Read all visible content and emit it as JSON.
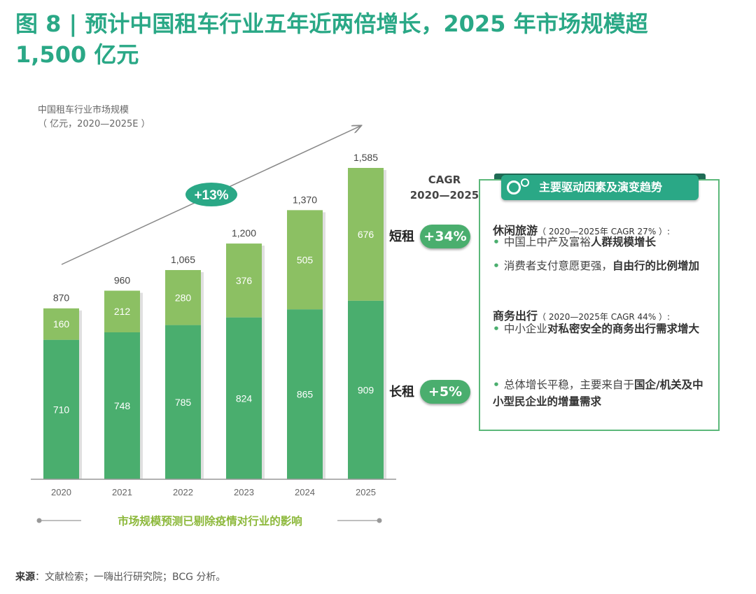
{
  "title": "图 8 | 预计中国租车行业五年近两倍增长，2025 年市场规模超 1,500 亿元",
  "chart_label_line1": "中国租车行业市场规模",
  "chart_label_line2": "（ 亿元，2020—2025E ）",
  "trend_badge": "+13%",
  "cagr_line1": "CAGR",
  "cagr_line2": "2020—2025",
  "short_rent": {
    "label": "短租",
    "cagr": "+34%"
  },
  "long_rent": {
    "label": "长租",
    "cagr": "+5%"
  },
  "panel": {
    "header": "主要驱动因素及演变趋势",
    "sec1_title": "休闲旅游",
    "sec1_sub": "（ 2020—2025年 CAGR 27% ）:",
    "sec1_b1_a": "中国上中产及富裕",
    "sec1_b1_b": "人群规模增长",
    "sec1_b2_a": "消费者支付意愿更强，",
    "sec1_b2_b": "自由行的比例增加",
    "sec2_title": "商务出行",
    "sec2_sub": "（ 2020—2025年 CAGR 44% ）:",
    "sec2_b1_a": "中小企业",
    "sec2_b1_b": "对私密安全的商务出行需求增大",
    "sec3_b1_a": "总体增长平稳，主要来自于",
    "sec3_b1_b": "国企/机关及中小型民企业的增量需求"
  },
  "footer_note": "市场规模预测已剔除疫情对行业的影响",
  "source_label": "来源",
  "source_text": "：文献检索；一嗨出行研究院；BCG 分析。",
  "colors": {
    "short_rent": "#8cc063",
    "long_rent": "#4aae6e",
    "accent": "#2aa886"
  },
  "chart_data": {
    "type": "bar",
    "stacked": true,
    "categories": [
      "2020",
      "2021",
      "2022",
      "2023",
      "2024",
      "2025"
    ],
    "series": [
      {
        "name": "长租",
        "values": [
          710,
          748,
          785,
          824,
          865,
          909
        ]
      },
      {
        "name": "短租",
        "values": [
          160,
          212,
          280,
          376,
          505,
          676
        ]
      }
    ],
    "totals": [
      "870",
      "960",
      "1,065",
      "1,200",
      "1,370",
      "1,585"
    ],
    "ylim": [
      0,
      1585
    ],
    "grid": false,
    "xlabel": "",
    "ylabel": ""
  }
}
